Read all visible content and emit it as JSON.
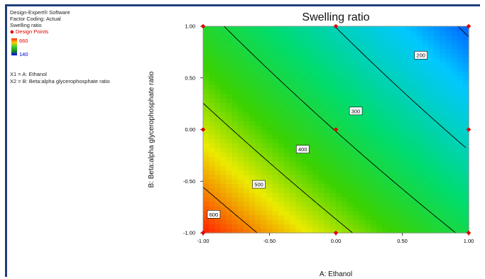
{
  "info": {
    "software": "Design-Expert® Software",
    "coding": "Factor Coding: Actual",
    "response": "Swelling ratio",
    "design_points_label": "Design Points",
    "legend_high": "660",
    "legend_low": "140",
    "x1_label": "X1 = A: Ethanol",
    "x2_label": "X2 = B: Beta:alpha glycerophosphate ratio"
  },
  "colors": {
    "frame": "#1f3f7a",
    "design_point": "#e00000",
    "contour_line": "#000000",
    "scale_high": "#ff2a00",
    "scale_low": "#0000ff"
  },
  "chart_data": {
    "type": "contour",
    "title": "Swelling ratio",
    "xlabel": "A: Ethanol",
    "ylabel": "B: Beta:alpha glycerophosphate ratio",
    "xlim": [
      -1,
      1
    ],
    "ylim": [
      -1,
      1
    ],
    "x_ticks": [
      "-1.00",
      "-0.50",
      "0.00",
      "0.50",
      "1.00"
    ],
    "y_ticks": [
      "1.00",
      "0.50",
      "0.00",
      "-0.50",
      "-1.00"
    ],
    "color_range": [
      140,
      660
    ],
    "contours": [
      {
        "level": 200,
        "label": "200",
        "label_at": [
          0.64,
          0.72
        ]
      },
      {
        "level": 300,
        "label": "300",
        "label_at": [
          0.15,
          0.18
        ]
      },
      {
        "level": 400,
        "label": "400",
        "label_at": [
          -0.25,
          -0.19
        ]
      },
      {
        "level": 500,
        "label": "500",
        "label_at": [
          -0.58,
          -0.53
        ]
      },
      {
        "level": 600,
        "label": "600",
        "label_at": [
          -0.92,
          -0.82
        ]
      }
    ],
    "design_points": [
      {
        "x": -1,
        "y": 1
      },
      {
        "x": 0,
        "y": 1
      },
      {
        "x": 1,
        "y": 1
      },
      {
        "x": -1,
        "y": 0
      },
      {
        "x": 0,
        "y": 0
      },
      {
        "x": 1,
        "y": 0
      },
      {
        "x": -1,
        "y": -1
      },
      {
        "x": 0,
        "y": -1
      },
      {
        "x": 1,
        "y": -1
      }
    ]
  }
}
